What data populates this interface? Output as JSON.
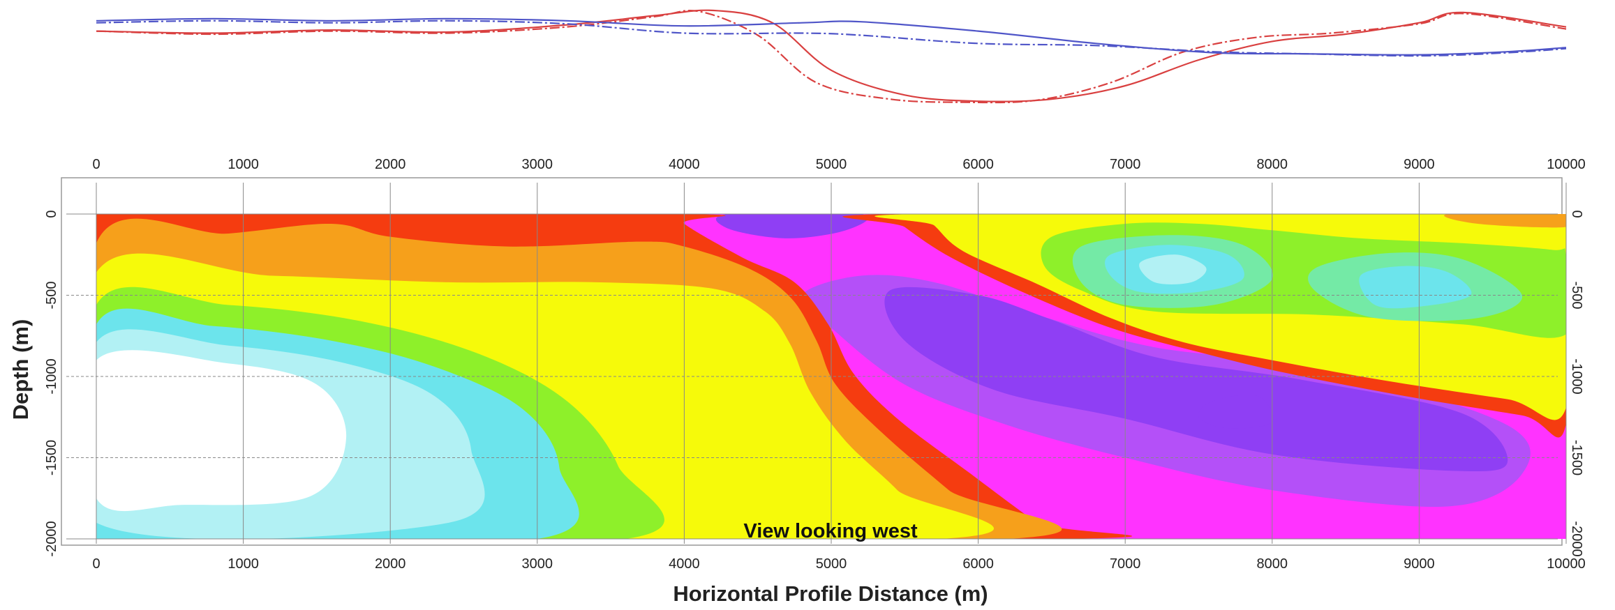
{
  "chart_data": [
    {
      "type": "line",
      "title": "",
      "xlabel": "",
      "ylabel": "",
      "xlim": [
        0,
        10000
      ],
      "note": "",
      "series": [
        {
          "color": "#d94040",
          "style": "solid",
          "x": [
            0,
            800,
            1600,
            2400,
            3200,
            3800,
            4200,
            4600,
            5000,
            5500,
            6000,
            6500,
            7000,
            7500,
            8000,
            8500,
            9000,
            9300,
            10000
          ],
          "y": [
            0.78,
            0.76,
            0.79,
            0.77,
            0.84,
            0.93,
            0.98,
            0.86,
            0.4,
            0.16,
            0.1,
            0.12,
            0.25,
            0.5,
            0.68,
            0.75,
            0.86,
            0.96,
            0.82
          ]
        },
        {
          "color": "#d94040",
          "style": "dashed",
          "x": [
            0,
            800,
            1600,
            2400,
            3200,
            3800,
            4100,
            4500,
            4900,
            5400,
            5900,
            6400,
            6900,
            7400,
            7900,
            8400,
            9000,
            9300,
            10000
          ],
          "y": [
            0.78,
            0.75,
            0.78,
            0.76,
            0.82,
            0.92,
            0.97,
            0.74,
            0.28,
            0.12,
            0.09,
            0.11,
            0.28,
            0.58,
            0.72,
            0.76,
            0.85,
            0.95,
            0.8
          ]
        },
        {
          "color": "#4f55c8",
          "style": "solid",
          "x": [
            0,
            800,
            1600,
            2400,
            3200,
            4000,
            4800,
            5200,
            6000,
            6800,
            7600,
            8200,
            9000,
            9600,
            10000
          ],
          "y": [
            0.88,
            0.9,
            0.88,
            0.9,
            0.88,
            0.83,
            0.86,
            0.87,
            0.78,
            0.66,
            0.57,
            0.56,
            0.55,
            0.58,
            0.62
          ]
        },
        {
          "color": "#4f55c8",
          "style": "dashed",
          "x": [
            0,
            800,
            1600,
            2400,
            3200,
            4000,
            4800,
            5200,
            6000,
            6800,
            7600,
            8200,
            9000,
            9600,
            10000
          ],
          "y": [
            0.86,
            0.88,
            0.86,
            0.88,
            0.85,
            0.76,
            0.76,
            0.74,
            0.66,
            0.64,
            0.58,
            0.56,
            0.54,
            0.57,
            0.61
          ]
        }
      ]
    },
    {
      "type": "heatmap",
      "title": "",
      "xlabel": "Horizontal Profile Distance (m)",
      "ylabel": "Depth (m)",
      "xlim": [
        0,
        10000
      ],
      "ylim": [
        -2000,
        0
      ],
      "x_ticks": [
        "0",
        "1000",
        "2000",
        "3000",
        "4000",
        "5000",
        "6000",
        "7000",
        "8000",
        "9000",
        "10000"
      ],
      "y_ticks": [
        "0",
        "-500",
        "-1000",
        "-1500",
        "-2000"
      ],
      "grid": true,
      "annotation": "View looking west",
      "palette": [
        "#ffffff",
        "#e4fafb",
        "#b2f1f4",
        "#6ce4ec",
        "#74eaa6",
        "#8ef02a",
        "#d8f51e",
        "#f6fa0a",
        "#f7c812",
        "#f6a01b",
        "#f57f12",
        "#f53c10",
        "#ff33ff",
        "#c14cf9",
        "#8f3ff4"
      ],
      "regions": [
        {
          "level": "magenta",
          "color": "#ff33ff",
          "polygon": [
            [
              4000,
              0
            ],
            [
              10000,
              0
            ],
            [
              10000,
              -2000
            ],
            [
              6600,
              -2000
            ],
            [
              5800,
              -1700
            ],
            [
              5400,
              -1300
            ],
            [
              5100,
              -1000
            ],
            [
              4900,
              -700
            ],
            [
              4800,
              -500
            ],
            [
              4600,
              -400
            ],
            [
              4200,
              -300
            ],
            [
              3900,
              -200
            ],
            [
              3800,
              0
            ]
          ]
        },
        {
          "level": "violet",
          "color": "#b450f8",
          "polygon": [
            [
              4800,
              -500
            ],
            [
              5200,
              -380
            ],
            [
              5700,
              -420
            ],
            [
              6400,
              -620
            ],
            [
              7200,
              -820
            ],
            [
              8400,
              -960
            ],
            [
              9600,
              -1300
            ],
            [
              9700,
              -1600
            ],
            [
              9200,
              -1800
            ],
            [
              8000,
              -1700
            ],
            [
              7000,
              -1500
            ],
            [
              6200,
              -1300
            ],
            [
              5500,
              -1050
            ],
            [
              5000,
              -700
            ]
          ]
        },
        {
          "level": "deep-violet",
          "color": "#8f3ff4",
          "polygon": [
            [
              5400,
              -470
            ],
            [
              6000,
              -500
            ],
            [
              6500,
              -650
            ],
            [
              7200,
              -880
            ],
            [
              8200,
              -1020
            ],
            [
              9300,
              -1230
            ],
            [
              9600,
              -1530
            ],
            [
              9200,
              -1580
            ],
            [
              8000,
              -1480
            ],
            [
              7000,
              -1260
            ],
            [
              6100,
              -1080
            ],
            [
              5500,
              -780
            ]
          ]
        },
        {
          "level": "violet-patch",
          "color": "#8f3ff4",
          "polygon": [
            [
              4300,
              0
            ],
            [
              5200,
              0
            ],
            [
              5100,
              -100
            ],
            [
              4700,
              -150
            ],
            [
              4300,
              -90
            ]
          ]
        },
        {
          "level": "red",
          "color": "#f53c10",
          "polygon": [
            [
              0,
              0
            ],
            [
              4000,
              0
            ],
            [
              4000,
              -60
            ],
            [
              4400,
              -270
            ],
            [
              4750,
              -420
            ],
            [
              4980,
              -680
            ],
            [
              5150,
              -980
            ],
            [
              5450,
              -1260
            ],
            [
              5950,
              -1600
            ],
            [
              6400,
              -1900
            ],
            [
              6600,
              -2000
            ],
            [
              0,
              -2000
            ]
          ]
        },
        {
          "level": "orange",
          "color": "#f6a01b",
          "polygon": [
            [
              0,
              -180
            ],
            [
              900,
              -120
            ],
            [
              1600,
              -60
            ],
            [
              2000,
              -140
            ],
            [
              2800,
              -200
            ],
            [
              3700,
              -170
            ],
            [
              4000,
              -200
            ],
            [
              4450,
              -340
            ],
            [
              4730,
              -520
            ],
            [
              4900,
              -780
            ],
            [
              5030,
              -1050
            ],
            [
              5350,
              -1350
            ],
            [
              5800,
              -1700
            ],
            [
              6200,
              -2000
            ],
            [
              0,
              -2000
            ]
          ]
        },
        {
          "level": "yellow",
          "color": "#f6fa0a",
          "polygon": [
            [
              0,
              -360
            ],
            [
              1200,
              -380
            ],
            [
              2400,
              -420
            ],
            [
              3400,
              -420
            ],
            [
              4200,
              -460
            ],
            [
              4550,
              -600
            ],
            [
              4720,
              -800
            ],
            [
              4860,
              -1100
            ],
            [
              5100,
              -1400
            ],
            [
              5450,
              -1700
            ],
            [
              5750,
              -2000
            ],
            [
              0,
              -2000
            ]
          ]
        },
        {
          "level": "green",
          "color": "#8ef02a",
          "polygon": [
            [
              0,
              -560
            ],
            [
              900,
              -560
            ],
            [
              1800,
              -660
            ],
            [
              2600,
              -860
            ],
            [
              3200,
              -1150
            ],
            [
              3550,
              -1550
            ],
            [
              3600,
              -2000
            ],
            [
              0,
              -2000
            ]
          ]
        },
        {
          "level": "cyan",
          "color": "#6ce4ec",
          "polygon": [
            [
              0,
              -680
            ],
            [
              800,
              -690
            ],
            [
              1600,
              -780
            ],
            [
              2300,
              -940
            ],
            [
              2900,
              -1200
            ],
            [
              3150,
              -1560
            ],
            [
              3000,
              -2000
            ],
            [
              0,
              -2000
            ]
          ]
        },
        {
          "level": "light-cyan",
          "color": "#b2f1f4",
          "polygon": [
            [
              0,
              -790
            ],
            [
              900,
              -810
            ],
            [
              1700,
              -920
            ],
            [
              2300,
              -1120
            ],
            [
              2550,
              -1450
            ],
            [
              2400,
              -1900
            ],
            [
              0,
              -1900
            ]
          ]
        },
        {
          "level": "white-core",
          "color": "#ffffff",
          "polygon": [
            [
              0,
              -900
            ],
            [
              900,
              -920
            ],
            [
              1500,
              -1050
            ],
            [
              1700,
              -1380
            ],
            [
              1450,
              -1740
            ],
            [
              600,
              -1790
            ],
            [
              0,
              -1750
            ]
          ]
        },
        {
          "level": "red-band-top",
          "color": "#f53c10",
          "polygon": [
            [
              5400,
              0
            ],
            [
              10000,
              0
            ],
            [
              10000,
              -1290
            ],
            [
              9700,
              -1240
            ],
            [
              8900,
              -1120
            ],
            [
              8100,
              -980
            ],
            [
              7500,
              -850
            ],
            [
              6900,
              -700
            ],
            [
              6300,
              -480
            ],
            [
              5800,
              -260
            ],
            [
              5500,
              -80
            ]
          ]
        },
        {
          "level": "yellow-top-right",
          "color": "#f6fa0a",
          "polygon": [
            [
              5600,
              0
            ],
            [
              10000,
              0
            ],
            [
              10000,
              -1190
            ],
            [
              9600,
              -1140
            ],
            [
              8800,
              -1030
            ],
            [
              8000,
              -900
            ],
            [
              7400,
              -790
            ],
            [
              6900,
              -640
            ],
            [
              6400,
              -430
            ],
            [
              5900,
              -230
            ],
            [
              5700,
              -70
            ]
          ]
        },
        {
          "level": "orange-corner",
          "color": "#f6a01b",
          "polygon": [
            [
              9200,
              0
            ],
            [
              10000,
              0
            ],
            [
              10000,
              -80
            ],
            [
              9400,
              -60
            ]
          ]
        },
        {
          "level": "green-pocket",
          "color": "#8ef02a",
          "polygon": [
            [
              6500,
              -140
            ],
            [
              7000,
              -60
            ],
            [
              7500,
              -60
            ],
            [
              8000,
              -100
            ],
            [
              8600,
              -150
            ],
            [
              9300,
              -180
            ],
            [
              9900,
              -220
            ],
            [
              10000,
              -260
            ],
            [
              10000,
              -740
            ],
            [
              9300,
              -680
            ],
            [
              8300,
              -620
            ],
            [
              7200,
              -600
            ],
            [
              6700,
              -470
            ],
            [
              6450,
              -320
            ]
          ]
        },
        {
          "level": "teal-pocket-a",
          "color": "#74eaa6",
          "polygon": [
            [
              6700,
              -200
            ],
            [
              7300,
              -130
            ],
            [
              7800,
              -190
            ],
            [
              8000,
              -400
            ],
            [
              7600,
              -560
            ],
            [
              7000,
              -560
            ],
            [
              6700,
              -420
            ]
          ]
        },
        {
          "level": "teal-pocket-b",
          "color": "#74eaa6",
          "polygon": [
            [
              8300,
              -330
            ],
            [
              8800,
              -240
            ],
            [
              9300,
              -280
            ],
            [
              9700,
              -500
            ],
            [
              9400,
              -640
            ],
            [
              8700,
              -640
            ],
            [
              8300,
              -480
            ]
          ]
        },
        {
          "level": "cyan-pocket-a",
          "color": "#6ce4ec",
          "polygon": [
            [
              6900,
              -250
            ],
            [
              7300,
              -190
            ],
            [
              7700,
              -250
            ],
            [
              7800,
              -400
            ],
            [
              7500,
              -480
            ],
            [
              7100,
              -480
            ],
            [
              6900,
              -380
            ]
          ]
        },
        {
          "level": "light-cyan-pocket-a",
          "color": "#b2f1f4",
          "polygon": [
            [
              7100,
              -300
            ],
            [
              7350,
              -250
            ],
            [
              7550,
              -330
            ],
            [
              7450,
              -420
            ],
            [
              7200,
              -420
            ]
          ]
        },
        {
          "level": "cyan-pocket-b",
          "color": "#6ce4ec",
          "polygon": [
            [
              8600,
              -380
            ],
            [
              8900,
              -320
            ],
            [
              9200,
              -360
            ],
            [
              9350,
              -500
            ],
            [
              9000,
              -570
            ],
            [
              8700,
              -560
            ]
          ]
        },
        {
          "level": "deep-violet-spot",
          "color": "#8f3ff4",
          "polygon": [
            [
              7600,
              -1150
            ],
            [
              7900,
              -1120
            ],
            [
              8000,
              -1280
            ],
            [
              7700,
              -1320
            ],
            [
              7500,
              -1250
            ]
          ]
        }
      ]
    }
  ]
}
